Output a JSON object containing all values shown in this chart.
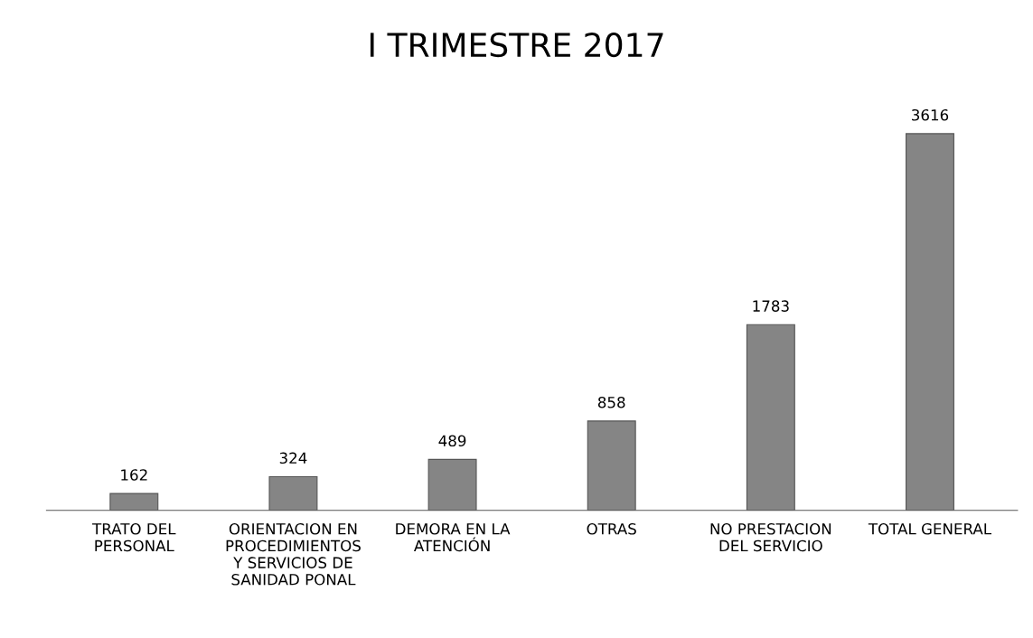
{
  "chart_data": {
    "type": "bar",
    "title": "I TRIMESTRE 2017",
    "categories": [
      "TRATO DEL\nPERSONAL",
      "ORIENTACION EN\nPROCEDIMIENTOS\nY SERVICIOS DE\nSANIDAD PONAL",
      "DEMORA EN LA\nATENCIÓN",
      "OTRAS",
      "NO PRESTACION\nDEL SERVICIO",
      "TOTAL GENERAL"
    ],
    "values": [
      162,
      324,
      489,
      858,
      1783,
      3616
    ],
    "color": "#858585",
    "data_labels": true,
    "tick_labels": "x",
    "grid": false,
    "legend": false
  }
}
